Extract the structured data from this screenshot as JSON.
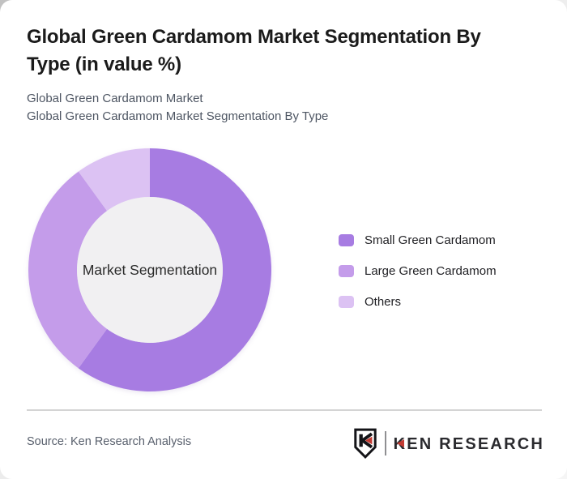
{
  "page": {
    "title": "Global Green Cardamom Market Segmentation By Type (in value %)",
    "subtitles": [
      "Global Green Cardamom Market",
      "Global Green Cardamom Market Segmentation By Type"
    ]
  },
  "chart_data": {
    "type": "pie",
    "variant": "donut",
    "title": "Global Green Cardamom Market Segmentation By Type (in value %)",
    "center_label": "Market Segmentation",
    "categories": [
      "Small Green Cardamom",
      "Large Green Cardamom",
      "Others"
    ],
    "values": [
      60,
      30,
      10
    ],
    "unit": "value %",
    "colors": [
      "#a77ce2",
      "#c49cea",
      "#dcc2f3"
    ],
    "center_color": "#f1f0f2",
    "start_angle_deg": 0,
    "direction": "clockwise",
    "inner_radius_ratio": 0.6,
    "legend_position": "right",
    "grid": false
  },
  "footer": {
    "source": "Source: Ken Research Analysis",
    "logo": {
      "wordmark": "KEN RESEARCH",
      "accent_color": "#c23b33",
      "dark_color": "#2a2a2e"
    }
  }
}
